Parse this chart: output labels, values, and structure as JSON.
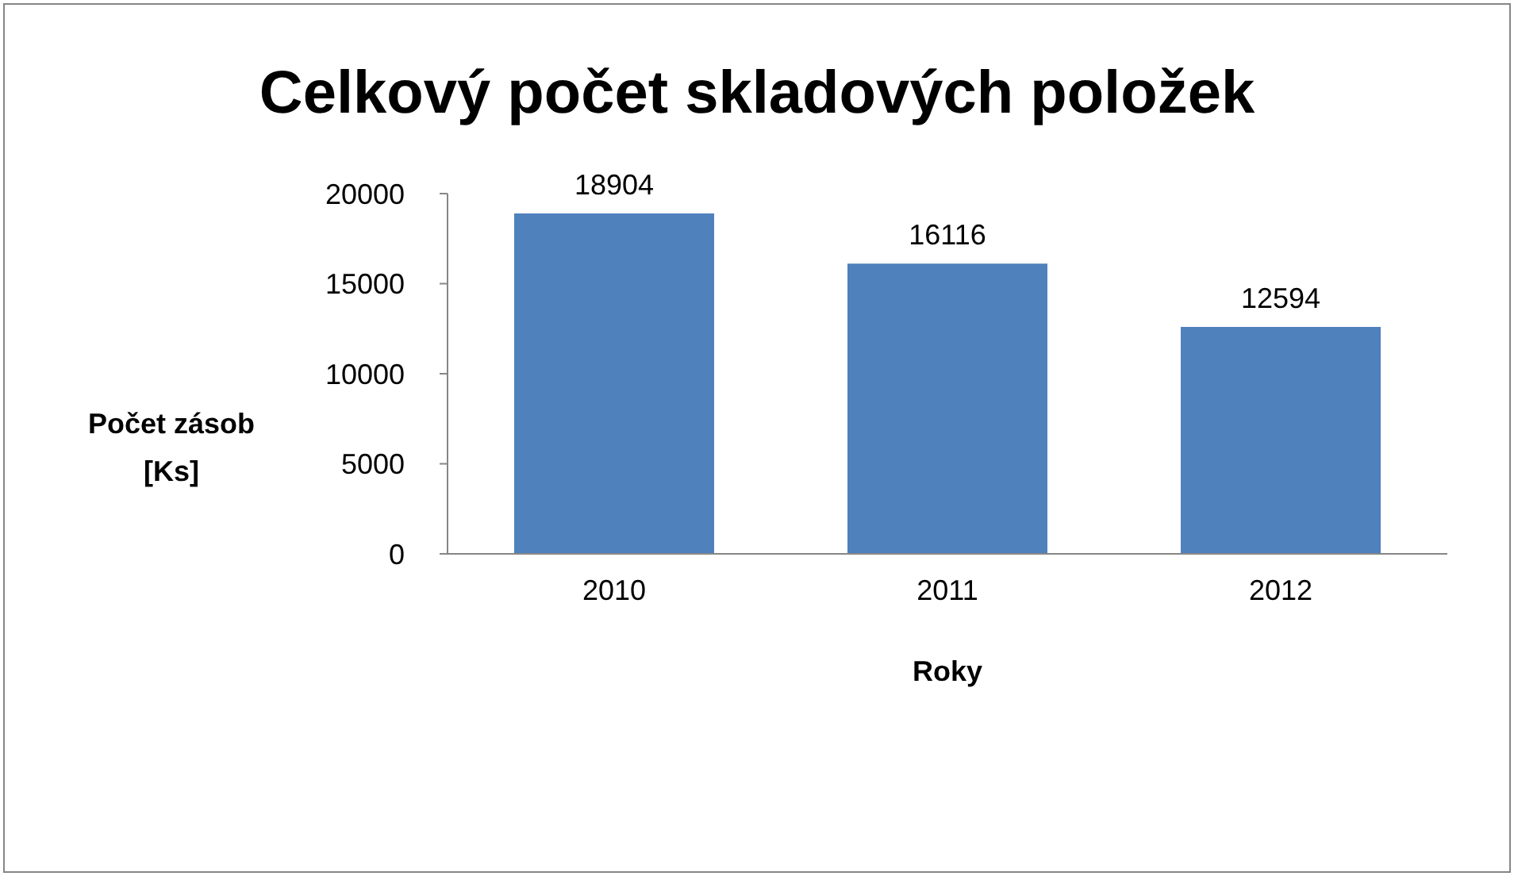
{
  "chart_data": {
    "type": "bar",
    "title": "Celkový počet skladových položek",
    "xlabel": "Roky",
    "ylabel": "Počet zásob [Ks]",
    "categories": [
      "2010",
      "2011",
      "2012"
    ],
    "values": [
      18904,
      16116,
      12594
    ],
    "color": "#4f81bd",
    "ylim": [
      0,
      20000
    ],
    "yticks": [
      0,
      5000,
      10000,
      15000,
      20000
    ],
    "grid": false,
    "legend": false,
    "data_labels": true
  }
}
